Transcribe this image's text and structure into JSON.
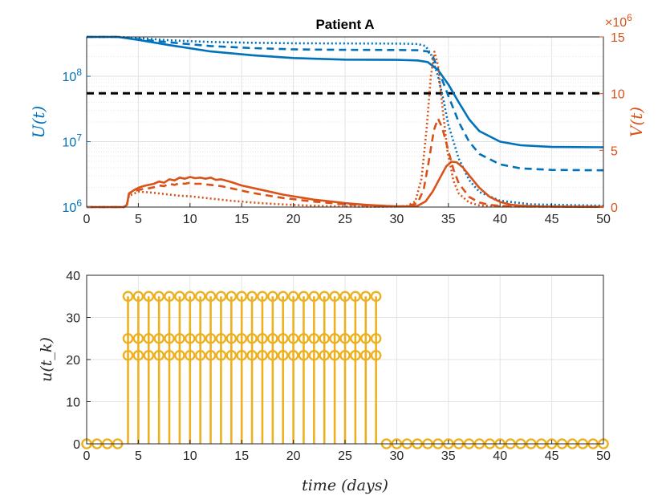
{
  "chart_data": [
    {
      "type": "line",
      "title": "Patient A",
      "xlabel": "",
      "xlim": [
        0,
        50
      ],
      "x_ticks": [
        "0",
        "5",
        "10",
        "15",
        "20",
        "25",
        "30",
        "35",
        "40",
        "45",
        "50"
      ],
      "left_axis": {
        "label": "U(t)",
        "scale": "log",
        "ylim": [
          1000000,
          400000000
        ],
        "tick_labels": [
          {
            "base": "10",
            "exp": "6",
            "value": 1000000
          },
          {
            "base": "10",
            "exp": "7",
            "value": 10000000
          },
          {
            "base": "10",
            "exp": "8",
            "value": 100000000
          }
        ],
        "color": "#0072BD"
      },
      "right_axis": {
        "label": "V(t)",
        "scale": "linear",
        "ylim": [
          0,
          15
        ],
        "multiplier": "×10",
        "multiplier_exp": "6",
        "tick_labels": [
          "0",
          "5",
          "10",
          "15"
        ],
        "color": "#D95319"
      },
      "threshold": {
        "axis": "left",
        "value": 55000000,
        "color": "#000000",
        "style": "dashed"
      },
      "series": [
        {
          "name": "U solid",
          "axis": "left",
          "style": "solid",
          "color": "#0072BD",
          "points": [
            [
              0,
              400000000
            ],
            [
              3,
              400000000
            ],
            [
              5,
              360000000
            ],
            [
              8,
              300000000
            ],
            [
              12,
              240000000
            ],
            [
              16,
              210000000
            ],
            [
              20,
              190000000
            ],
            [
              25,
              180000000
            ],
            [
              30,
              178000000
            ],
            [
              32,
              175000000
            ],
            [
              33,
              165000000
            ],
            [
              34,
              125000000
            ],
            [
              35,
              75000000
            ],
            [
              36,
              40000000
            ],
            [
              37,
              22000000
            ],
            [
              38,
              14500000
            ],
            [
              40,
              10000000
            ],
            [
              42,
              8800000
            ],
            [
              45,
              8300000
            ],
            [
              50,
              8200000
            ]
          ]
        },
        {
          "name": "U dashed",
          "axis": "left",
          "style": "dashed",
          "color": "#0072BD",
          "points": [
            [
              0,
              400000000
            ],
            [
              3,
              400000000
            ],
            [
              5,
              370000000
            ],
            [
              8,
              330000000
            ],
            [
              12,
              290000000
            ],
            [
              16,
              270000000
            ],
            [
              20,
              258000000
            ],
            [
              25,
              254000000
            ],
            [
              30,
              252000000
            ],
            [
              32,
              250000000
            ],
            [
              33,
              240000000
            ],
            [
              33.5,
              200000000
            ],
            [
              34,
              130000000
            ],
            [
              35,
              50000000
            ],
            [
              36,
              20000000
            ],
            [
              37,
              10000000
            ],
            [
              38,
              6500000
            ],
            [
              40,
              4500000
            ],
            [
              42,
              3900000
            ],
            [
              45,
              3700000
            ],
            [
              50,
              3650000
            ]
          ]
        },
        {
          "name": "U dotted",
          "axis": "left",
          "style": "dotted",
          "color": "#0072BD",
          "points": [
            [
              0,
              400000000
            ],
            [
              3,
              400000000
            ],
            [
              5,
              385000000
            ],
            [
              8,
              355000000
            ],
            [
              12,
              335000000
            ],
            [
              16,
              325000000
            ],
            [
              20,
              320000000
            ],
            [
              25,
              318000000
            ],
            [
              30,
              316000000
            ],
            [
              32,
              312000000
            ],
            [
              32.8,
              290000000
            ],
            [
              33.3,
              220000000
            ],
            [
              34,
              100000000
            ],
            [
              34.5,
              45000000
            ],
            [
              35,
              18000000
            ],
            [
              36,
              5500000
            ],
            [
              37,
              2600000
            ],
            [
              38,
              1700000
            ],
            [
              40,
              1250000
            ],
            [
              43,
              1100000
            ],
            [
              50,
              1050000
            ]
          ]
        },
        {
          "name": "V solid",
          "axis": "right",
          "style": "solid",
          "color": "#D95319",
          "points": [
            [
              0,
              0
            ],
            [
              3.6,
              0
            ],
            [
              3.9,
              0.2
            ],
            [
              4.1,
              1.2
            ],
            [
              4.6,
              1.5
            ],
            [
              5,
              1.7
            ],
            [
              5.5,
              1.85
            ],
            [
              6,
              1.95
            ],
            [
              6.5,
              2.05
            ],
            [
              7,
              2.25
            ],
            [
              7.5,
              2.15
            ],
            [
              8,
              2.45
            ],
            [
              8.5,
              2.35
            ],
            [
              9,
              2.6
            ],
            [
              9.5,
              2.5
            ],
            [
              10,
              2.65
            ],
            [
              10.5,
              2.55
            ],
            [
              11,
              2.6
            ],
            [
              11.5,
              2.5
            ],
            [
              12,
              2.6
            ],
            [
              12.5,
              2.4
            ],
            [
              13,
              2.45
            ],
            [
              14,
              2.2
            ],
            [
              15,
              1.9
            ],
            [
              16,
              1.7
            ],
            [
              17,
              1.5
            ],
            [
              18,
              1.3
            ],
            [
              19,
              1.1
            ],
            [
              20,
              0.95
            ],
            [
              21,
              0.8
            ],
            [
              22,
              0.65
            ],
            [
              23,
              0.55
            ],
            [
              24,
              0.45
            ],
            [
              25,
              0.35
            ],
            [
              26,
              0.27
            ],
            [
              27,
              0.2
            ],
            [
              28,
              0.15
            ],
            [
              29,
              0.1
            ],
            [
              30,
              0.07
            ],
            [
              31,
              0.06
            ],
            [
              32,
              0.1
            ],
            [
              32.8,
              0.5
            ],
            [
              33.5,
              1.4
            ],
            [
              34.2,
              2.6
            ],
            [
              34.8,
              3.6
            ],
            [
              35.3,
              4.0
            ],
            [
              35.8,
              3.95
            ],
            [
              36.4,
              3.5
            ],
            [
              37,
              2.8
            ],
            [
              38,
              1.7
            ],
            [
              39,
              0.9
            ],
            [
              40,
              0.45
            ],
            [
              41,
              0.22
            ],
            [
              42,
              0.12
            ],
            [
              44,
              0.06
            ],
            [
              47,
              0.03
            ],
            [
              50,
              0.02
            ]
          ]
        },
        {
          "name": "V dashed",
          "axis": "right",
          "style": "dashed",
          "color": "#D95319",
          "points": [
            [
              0,
              0
            ],
            [
              3.6,
              0
            ],
            [
              3.9,
              0.2
            ],
            [
              4.1,
              1.2
            ],
            [
              4.6,
              1.4
            ],
            [
              5,
              1.5
            ],
            [
              5.5,
              1.6
            ],
            [
              6,
              1.65
            ],
            [
              6.5,
              1.75
            ],
            [
              7,
              1.9
            ],
            [
              7.5,
              1.85
            ],
            [
              8,
              2.05
            ],
            [
              8.5,
              1.95
            ],
            [
              9,
              2.1
            ],
            [
              9.5,
              2.05
            ],
            [
              10,
              2.15
            ],
            [
              10.5,
              2.05
            ],
            [
              11,
              2.05
            ],
            [
              12,
              1.95
            ],
            [
              13,
              1.85
            ],
            [
              14,
              1.65
            ],
            [
              15,
              1.45
            ],
            [
              16,
              1.25
            ],
            [
              17,
              1.1
            ],
            [
              18,
              0.95
            ],
            [
              19,
              0.8
            ],
            [
              20,
              0.7
            ],
            [
              21,
              0.58
            ],
            [
              22,
              0.48
            ],
            [
              23,
              0.4
            ],
            [
              24,
              0.32
            ],
            [
              25,
              0.25
            ],
            [
              26,
              0.19
            ],
            [
              27,
              0.14
            ],
            [
              28,
              0.1
            ],
            [
              29,
              0.07
            ],
            [
              30,
              0.05
            ],
            [
              31,
              0.08
            ],
            [
              32,
              0.35
            ],
            [
              32.6,
              1.5
            ],
            [
              33.1,
              4.0
            ],
            [
              33.6,
              6.8
            ],
            [
              34,
              7.8
            ],
            [
              34.4,
              7.0
            ],
            [
              34.9,
              5.3
            ],
            [
              35.5,
              3.3
            ],
            [
              36,
              2.1
            ],
            [
              37,
              0.9
            ],
            [
              38,
              0.4
            ],
            [
              39,
              0.2
            ],
            [
              40,
              0.1
            ],
            [
              43,
              0.05
            ],
            [
              50,
              0.02
            ]
          ]
        },
        {
          "name": "V dotted",
          "axis": "right",
          "style": "dotted",
          "color": "#D95319",
          "points": [
            [
              0,
              0
            ],
            [
              3.6,
              0
            ],
            [
              3.9,
              0.2
            ],
            [
              4.1,
              1.0
            ],
            [
              5,
              1.35
            ],
            [
              6,
              1.3
            ],
            [
              7,
              1.2
            ],
            [
              8,
              1.1
            ],
            [
              9,
              1.0
            ],
            [
              10,
              0.95
            ],
            [
              11,
              0.85
            ],
            [
              12,
              0.75
            ],
            [
              13,
              0.65
            ],
            [
              14,
              0.55
            ],
            [
              15,
              0.48
            ],
            [
              16,
              0.4
            ],
            [
              17,
              0.34
            ],
            [
              18,
              0.28
            ],
            [
              19,
              0.23
            ],
            [
              20,
              0.19
            ],
            [
              21,
              0.15
            ],
            [
              22,
              0.12
            ],
            [
              23,
              0.09
            ],
            [
              24,
              0.07
            ],
            [
              25,
              0.05
            ],
            [
              26,
              0.04
            ],
            [
              28,
              0.03
            ],
            [
              30,
              0.04
            ],
            [
              31,
              0.1
            ],
            [
              31.8,
              0.5
            ],
            [
              32.4,
              2.5
            ],
            [
              32.9,
              7.0
            ],
            [
              33.3,
              11.5
            ],
            [
              33.65,
              13.7
            ],
            [
              34,
              12.5
            ],
            [
              34.4,
              9.0
            ],
            [
              34.9,
              5.0
            ],
            [
              35.5,
              2.3
            ],
            [
              36,
              1.2
            ],
            [
              37,
              0.4
            ],
            [
              38,
              0.15
            ],
            [
              40,
              0.05
            ],
            [
              50,
              0.01
            ]
          ]
        }
      ]
    },
    {
      "type": "stem",
      "title": "",
      "xlabel": "time (days)",
      "ylabel": "u(t_k)",
      "xlim": [
        0,
        50
      ],
      "ylim": [
        0,
        40
      ],
      "x_ticks": [
        "0",
        "5",
        "10",
        "15",
        "20",
        "25",
        "30",
        "35",
        "40",
        "45",
        "50"
      ],
      "y_ticks": [
        "0",
        "10",
        "20",
        "30",
        "40"
      ],
      "color": "#EDB120",
      "series": [
        {
          "name": "dose high",
          "values": [
            0,
            0,
            0,
            0,
            35,
            35,
            35,
            35,
            35,
            35,
            35,
            35,
            35,
            35,
            35,
            35,
            35,
            35,
            35,
            35,
            35,
            35,
            35,
            35,
            35,
            35,
            35,
            35,
            35,
            0,
            0,
            0,
            0,
            0,
            0,
            0,
            0,
            0,
            0,
            0,
            0,
            0,
            0,
            0,
            0,
            0,
            0,
            0,
            0,
            0,
            0
          ]
        },
        {
          "name": "dose mid",
          "values": [
            0,
            0,
            0,
            0,
            25,
            25,
            25,
            25,
            25,
            25,
            25,
            25,
            25,
            25,
            25,
            25,
            25,
            25,
            25,
            25,
            25,
            25,
            25,
            25,
            25,
            25,
            25,
            25,
            25,
            0,
            0,
            0,
            0,
            0,
            0,
            0,
            0,
            0,
            0,
            0,
            0,
            0,
            0,
            0,
            0,
            0,
            0,
            0,
            0,
            0,
            0
          ]
        },
        {
          "name": "dose low",
          "values": [
            0,
            0,
            0,
            0,
            21,
            21,
            21,
            21,
            21,
            21,
            21,
            21,
            21,
            21,
            21,
            21,
            21,
            21,
            21,
            21,
            21,
            21,
            21,
            21,
            21,
            21,
            21,
            21,
            21,
            0,
            0,
            0,
            0,
            0,
            0,
            0,
            0,
            0,
            0,
            0,
            0,
            0,
            0,
            0,
            0,
            0,
            0,
            0,
            0,
            0,
            0
          ]
        }
      ]
    }
  ]
}
